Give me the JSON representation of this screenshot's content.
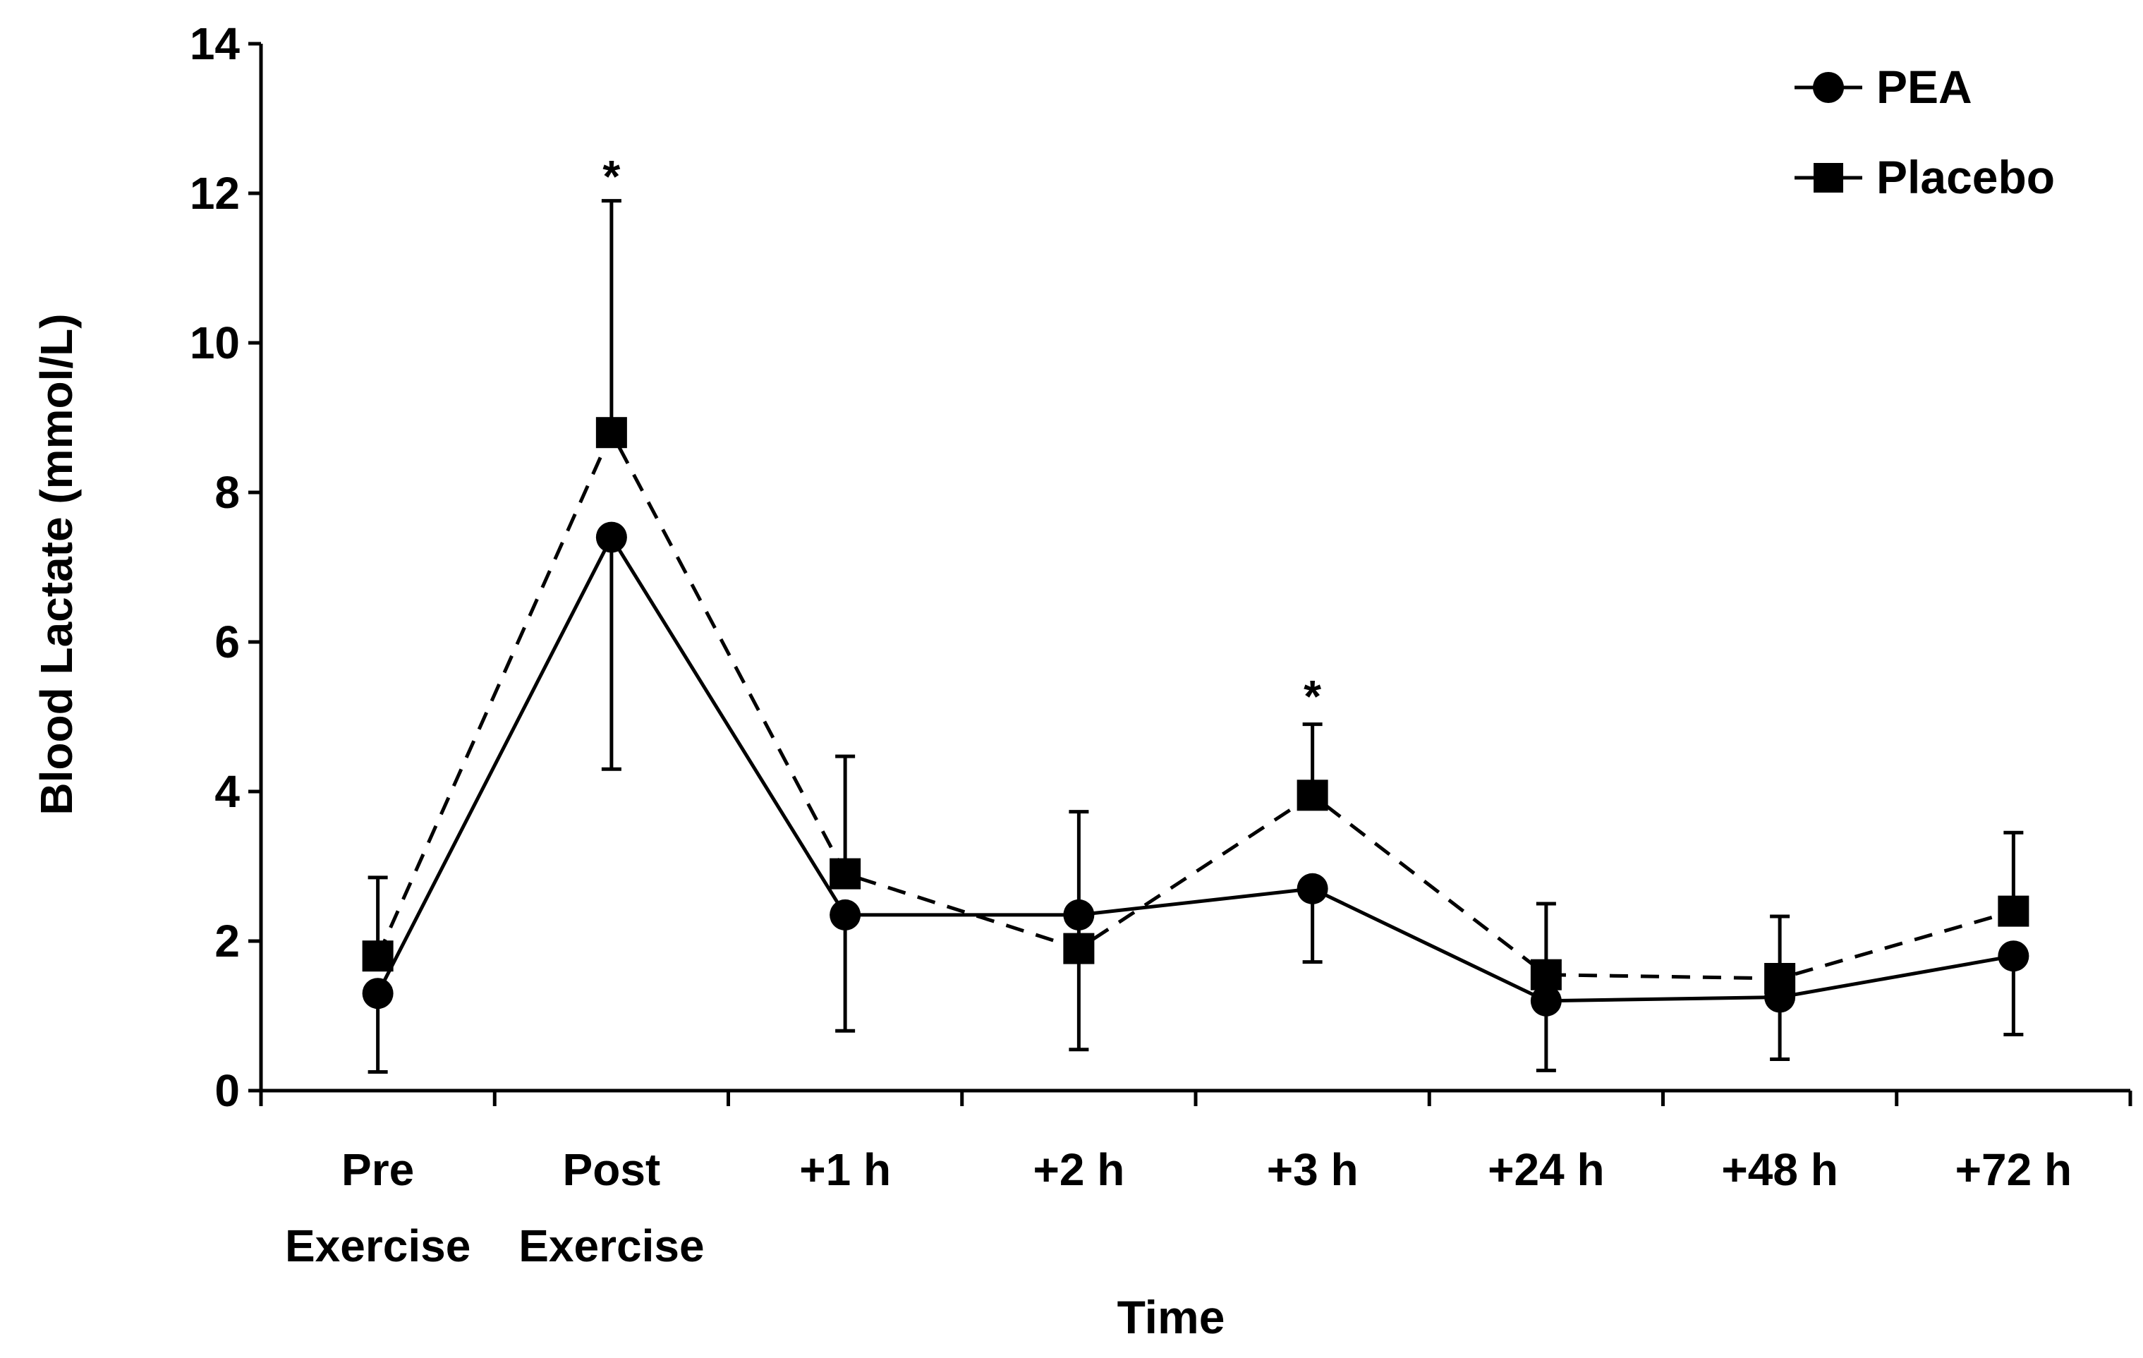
{
  "chart_data": {
    "type": "line",
    "xlabel": "Time",
    "ylabel": "Blood Lactate (mmol/L)",
    "ylim": [
      0,
      14
    ],
    "yticks": [
      "0",
      "2",
      "4",
      "6",
      "8",
      "10",
      "12",
      "14"
    ],
    "categories": [
      [
        "Pre",
        "Exercise"
      ],
      [
        "Post",
        "Exercise"
      ],
      [
        "+1 h"
      ],
      [
        "+2 h"
      ],
      [
        "+3 h"
      ],
      [
        "+24 h"
      ],
      [
        "+48 h"
      ],
      [
        "+72 h"
      ]
    ],
    "series": [
      {
        "name": "PEA",
        "marker": "circle",
        "line": "solid",
        "values": [
          1.3,
          7.4,
          2.35,
          2.35,
          2.7,
          1.2,
          1.25,
          1.8
        ],
        "error_lower": [
          0.25,
          4.3,
          0.8,
          null,
          1.72,
          0.27,
          0.42,
          0.75
        ],
        "error_upper": [
          null,
          null,
          null,
          null,
          null,
          null,
          null,
          null
        ]
      },
      {
        "name": "Placebo",
        "marker": "square",
        "line": "dashed",
        "values": [
          1.8,
          8.8,
          2.9,
          1.9,
          3.95,
          1.55,
          1.5,
          2.4
        ],
        "error_lower": [
          null,
          null,
          null,
          0.55,
          null,
          null,
          null,
          null
        ],
        "error_upper": [
          2.85,
          11.9,
          4.47,
          3.73,
          4.9,
          2.5,
          2.33,
          3.45
        ]
      }
    ],
    "annotations": [
      {
        "text": "*",
        "category_index": 1,
        "y": 12.3
      },
      {
        "text": "*",
        "category_index": 4,
        "y": 5.35
      }
    ],
    "legend": {
      "position": "top-right",
      "entries": [
        "PEA",
        "Placebo"
      ]
    },
    "grid": false
  }
}
